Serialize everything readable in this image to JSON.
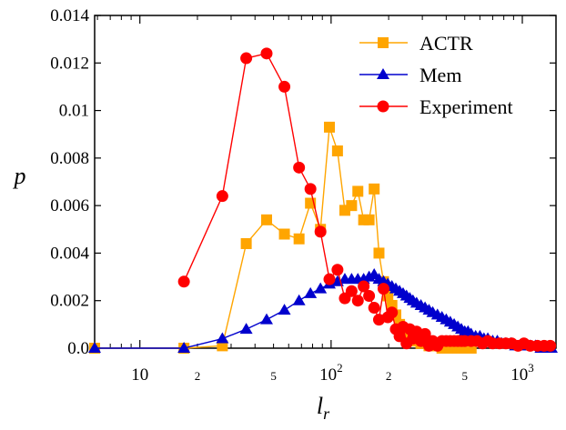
{
  "chart_data": {
    "type": "line",
    "title": "",
    "xlabel": "l",
    "xlabel_sub": "r",
    "ylabel": "p",
    "x_scale": "log",
    "xlim": [
      5.8,
      1500
    ],
    "ylim": [
      0,
      0.014
    ],
    "grid": false,
    "legend_position": "top-right",
    "y_ticks": [
      {
        "value": 0.0,
        "label": "0.0"
      },
      {
        "value": 0.002,
        "label": "0.002"
      },
      {
        "value": 0.004,
        "label": "0.004"
      },
      {
        "value": 0.006,
        "label": "0.006"
      },
      {
        "value": 0.008,
        "label": "0.008"
      },
      {
        "value": 0.01,
        "label": "0.01"
      },
      {
        "value": 0.012,
        "label": "0.012"
      },
      {
        "value": 0.014,
        "label": "0.014"
      }
    ],
    "x_major_ticks": [
      {
        "value": 10,
        "base": "10",
        "exp": ""
      },
      {
        "value": 100,
        "base": "10",
        "exp": "2"
      },
      {
        "value": 1000,
        "base": "10",
        "exp": "3"
      }
    ],
    "x_minor_labels": [
      {
        "value": 20,
        "label": "2"
      },
      {
        "value": 50,
        "label": "5"
      },
      {
        "value": 200,
        "label": "2"
      },
      {
        "value": 500,
        "label": "5"
      }
    ],
    "series": [
      {
        "name": "ACTR",
        "color": "#FFA500",
        "marker": "square",
        "points": [
          [
            5.8,
            0.0
          ],
          [
            17,
            0.0
          ],
          [
            27,
            0.0001
          ],
          [
            36,
            0.0044
          ],
          [
            46,
            0.0054
          ],
          [
            57,
            0.0048
          ],
          [
            68,
            0.0046
          ],
          [
            78,
            0.0061
          ],
          [
            88,
            0.005
          ],
          [
            98,
            0.0093
          ],
          [
            108,
            0.0083
          ],
          [
            118,
            0.0058
          ],
          [
            128,
            0.006
          ],
          [
            138,
            0.0066
          ],
          [
            148,
            0.0054
          ],
          [
            158,
            0.0054
          ],
          [
            168,
            0.0067
          ],
          [
            178,
            0.004
          ],
          [
            188,
            0.0028
          ],
          [
            198,
            0.0022
          ],
          [
            208,
            0.0018
          ],
          [
            218,
            0.0014
          ],
          [
            228,
            0.001
          ],
          [
            238,
            0.0008
          ],
          [
            248,
            0.0006
          ],
          [
            258,
            0.0005
          ],
          [
            268,
            0.0004
          ],
          [
            280,
            0.0003
          ],
          [
            295,
            0.0002
          ],
          [
            310,
            0.0002
          ],
          [
            325,
            0.0001
          ],
          [
            340,
            0.0001
          ],
          [
            360,
            0.0001
          ],
          [
            380,
            0.0
          ],
          [
            400,
            0.0
          ],
          [
            420,
            0.0
          ],
          [
            440,
            0.0
          ],
          [
            460,
            0.0
          ],
          [
            480,
            0.0
          ],
          [
            500,
            0.0
          ],
          [
            520,
            0.0
          ],
          [
            540,
            0.0
          ]
        ]
      },
      {
        "name": "Mem",
        "color": "#0000CD",
        "marker": "triangle",
        "points": [
          [
            5.8,
            0.0
          ],
          [
            17,
            0.0
          ],
          [
            27,
            0.0004
          ],
          [
            36,
            0.0008
          ],
          [
            46,
            0.0012
          ],
          [
            57,
            0.0016
          ],
          [
            68,
            0.002
          ],
          [
            78,
            0.0023
          ],
          [
            88,
            0.0025
          ],
          [
            98,
            0.0027
          ],
          [
            108,
            0.0028
          ],
          [
            118,
            0.0029
          ],
          [
            128,
            0.0029
          ],
          [
            138,
            0.0029
          ],
          [
            148,
            0.0029
          ],
          [
            158,
            0.003
          ],
          [
            168,
            0.0031
          ],
          [
            178,
            0.0029
          ],
          [
            188,
            0.0028
          ],
          [
            198,
            0.0027
          ],
          [
            208,
            0.0026
          ],
          [
            218,
            0.0025
          ],
          [
            228,
            0.0024
          ],
          [
            238,
            0.0023
          ],
          [
            248,
            0.0022
          ],
          [
            258,
            0.0021
          ],
          [
            268,
            0.002
          ],
          [
            280,
            0.0019
          ],
          [
            295,
            0.0018
          ],
          [
            310,
            0.0017
          ],
          [
            325,
            0.0016
          ],
          [
            340,
            0.0015
          ],
          [
            360,
            0.0014
          ],
          [
            380,
            0.0013
          ],
          [
            400,
            0.0012
          ],
          [
            420,
            0.0011
          ],
          [
            440,
            0.001
          ],
          [
            460,
            0.0009
          ],
          [
            480,
            0.0008
          ],
          [
            500,
            0.0007
          ],
          [
            520,
            0.0007
          ],
          [
            540,
            0.0006
          ],
          [
            570,
            0.0005
          ],
          [
            600,
            0.0005
          ],
          [
            630,
            0.0004
          ],
          [
            660,
            0.0004
          ],
          [
            700,
            0.0003
          ],
          [
            740,
            0.0003
          ],
          [
            780,
            0.0002
          ],
          [
            820,
            0.0002
          ],
          [
            870,
            0.0002
          ],
          [
            920,
            0.0001
          ],
          [
            970,
            0.0001
          ],
          [
            1030,
            0.0001
          ],
          [
            1100,
            0.0001
          ],
          [
            1170,
            0.0001
          ],
          [
            1250,
            0.0
          ],
          [
            1330,
            0.0
          ],
          [
            1420,
            0.0
          ]
        ]
      },
      {
        "name": "Experiment",
        "color": "#FF0000",
        "marker": "circle",
        "points": [
          [
            17,
            0.0028
          ],
          [
            27,
            0.0064
          ],
          [
            36,
            0.0122
          ],
          [
            46,
            0.0124
          ],
          [
            57,
            0.011
          ],
          [
            68,
            0.0076
          ],
          [
            78,
            0.0067
          ],
          [
            88,
            0.0049
          ],
          [
            98,
            0.0029
          ],
          [
            108,
            0.0033
          ],
          [
            118,
            0.0021
          ],
          [
            128,
            0.0024
          ],
          [
            138,
            0.002
          ],
          [
            148,
            0.0026
          ],
          [
            158,
            0.0022
          ],
          [
            168,
            0.0017
          ],
          [
            178,
            0.0012
          ],
          [
            188,
            0.0025
          ],
          [
            198,
            0.0013
          ],
          [
            208,
            0.0015
          ],
          [
            218,
            0.0008
          ],
          [
            228,
            0.0005
          ],
          [
            238,
            0.0009
          ],
          [
            248,
            0.0002
          ],
          [
            258,
            0.0008
          ],
          [
            268,
            0.0004
          ],
          [
            280,
            0.0007
          ],
          [
            295,
            0.0003
          ],
          [
            310,
            0.0006
          ],
          [
            325,
            0.0001
          ],
          [
            340,
            0.0003
          ],
          [
            360,
            0.0001
          ],
          [
            380,
            0.0003
          ],
          [
            400,
            0.0003
          ],
          [
            420,
            0.0003
          ],
          [
            440,
            0.0003
          ],
          [
            460,
            0.0003
          ],
          [
            480,
            0.0003
          ],
          [
            500,
            0.0003
          ],
          [
            540,
            0.0003
          ],
          [
            580,
            0.0003
          ],
          [
            620,
            0.0002
          ],
          [
            660,
            0.0003
          ],
          [
            700,
            0.0002
          ],
          [
            760,
            0.0002
          ],
          [
            820,
            0.0002
          ],
          [
            880,
            0.0002
          ],
          [
            950,
            0.0001
          ],
          [
            1020,
            0.0002
          ],
          [
            1100,
            0.0001
          ],
          [
            1200,
            0.0001
          ],
          [
            1300,
            0.0001
          ],
          [
            1400,
            0.0001
          ]
        ]
      }
    ]
  }
}
